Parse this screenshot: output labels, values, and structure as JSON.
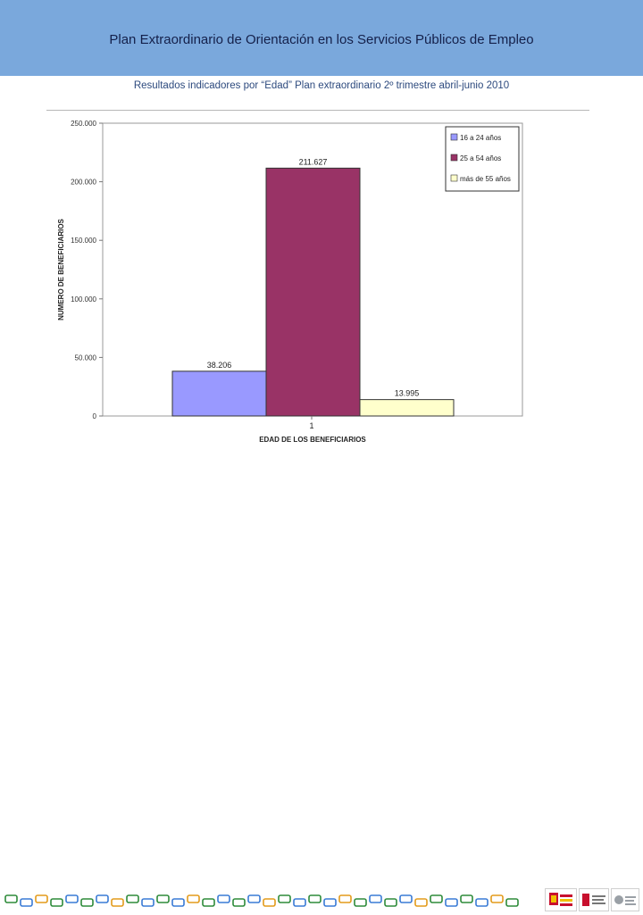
{
  "header": {
    "title": "Plan Extraordinario de Orientación en los Servicios Públicos de Empleo"
  },
  "subtitle": "Resultados indicadores por “Edad” Plan extraordinario 2º trimestre abril-junio 2010",
  "colors": {
    "header_bg": "#7aa8dc",
    "series_1": "#9999ff",
    "series_2": "#993366",
    "series_3": "#ffffcc"
  },
  "chart_data": {
    "type": "bar",
    "categories": [
      "1"
    ],
    "series": [
      {
        "name": "16 a 24 años",
        "values": [
          38206
        ],
        "label": "38.206",
        "color": "#9999ff"
      },
      {
        "name": "25 a 54 años",
        "values": [
          211627
        ],
        "label": "211.627",
        "color": "#993366"
      },
      {
        "name": "más de 55 años",
        "values": [
          13995
        ],
        "label": "13.995",
        "color": "#ffffcc"
      }
    ],
    "title": "",
    "xlabel": "EDAD DE LOS BENEFICIARIOS",
    "ylabel": "NUMERO DE BENEFICIARIOS",
    "ylim": [
      0,
      250000
    ],
    "yticks": [
      0,
      50000,
      100000,
      150000,
      200000,
      250000
    ],
    "ytick_labels": [
      "0",
      "50.000",
      "100.000",
      "150.000",
      "200.000",
      "250.000"
    ],
    "legend": "top-right",
    "grid": false
  }
}
